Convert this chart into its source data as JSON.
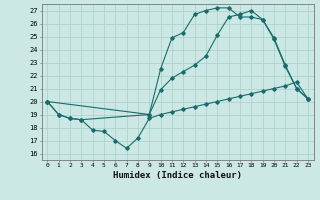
{
  "xlabel": "Humidex (Indice chaleur)",
  "background_color": "#cce8e4",
  "grid_color": "#aacfcb",
  "line_color": "#1a6b6b",
  "xlim": [
    -0.5,
    23.5
  ],
  "ylim": [
    15.5,
    27.5
  ],
  "yticks": [
    16,
    17,
    18,
    19,
    20,
    21,
    22,
    23,
    24,
    25,
    26,
    27
  ],
  "xticks": [
    0,
    1,
    2,
    3,
    4,
    5,
    6,
    7,
    8,
    9,
    10,
    11,
    12,
    13,
    14,
    15,
    16,
    17,
    18,
    19,
    20,
    21,
    22,
    23
  ],
  "series": [
    {
      "x": [
        0,
        1,
        2,
        3,
        4,
        5,
        6,
        7,
        8,
        9,
        10,
        11,
        12,
        13,
        14,
        15,
        16,
        17,
        18,
        19,
        20,
        21,
        22,
        23
      ],
      "y": [
        20.0,
        19.0,
        18.7,
        18.6,
        17.8,
        17.7,
        17.0,
        16.4,
        17.2,
        18.7,
        19.0,
        19.2,
        19.4,
        19.6,
        19.8,
        20.0,
        20.2,
        20.4,
        20.6,
        20.8,
        21.0,
        21.2,
        21.5,
        20.2
      ]
    },
    {
      "x": [
        0,
        1,
        2,
        3,
        9,
        10,
        11,
        12,
        13,
        14,
        15,
        16,
        17,
        18,
        19,
        20,
        21,
        22,
        23
      ],
      "y": [
        20.0,
        19.0,
        18.7,
        18.6,
        19.0,
        20.9,
        21.8,
        22.3,
        22.8,
        23.5,
        25.1,
        26.5,
        26.7,
        27.0,
        26.3,
        24.8,
        22.7,
        21.0,
        20.2
      ]
    },
    {
      "x": [
        0,
        9,
        10,
        11,
        12,
        13,
        14,
        15,
        16,
        17,
        18,
        19,
        20,
        21,
        22,
        23
      ],
      "y": [
        20.0,
        19.0,
        22.5,
        24.9,
        25.3,
        26.7,
        27.0,
        27.2,
        27.2,
        26.5,
        26.5,
        26.3,
        24.9,
        22.8,
        21.0,
        20.2
      ]
    }
  ]
}
